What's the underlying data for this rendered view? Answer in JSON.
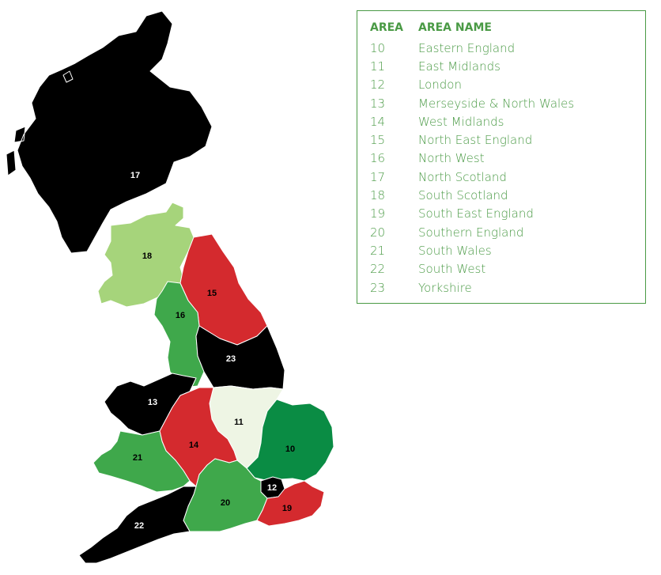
{
  "legend": {
    "header": {
      "area": "AREA",
      "area_name": "AREA NAME"
    },
    "rows": [
      {
        "code": "10",
        "name": "Eastern England"
      },
      {
        "code": "11",
        "name": "East Midlands"
      },
      {
        "code": "12",
        "name": "London"
      },
      {
        "code": "13",
        "name": "Merseyside & North Wales"
      },
      {
        "code": "14",
        "name": "West Midlands"
      },
      {
        "code": "15",
        "name": "North East England"
      },
      {
        "code": "16",
        "name": "North West"
      },
      {
        "code": "17",
        "name": "North Scotland"
      },
      {
        "code": "18",
        "name": "South Scotland"
      },
      {
        "code": "19",
        "name": "South East England"
      },
      {
        "code": "20",
        "name": "Southern England"
      },
      {
        "code": "21",
        "name": "South Wales"
      },
      {
        "code": "22",
        "name": "South West"
      },
      {
        "code": "23",
        "name": "Yorkshire"
      }
    ]
  },
  "map": {
    "regions": [
      {
        "id": "17",
        "label": "17",
        "fill": "#000000",
        "label_color": "#ffffff"
      },
      {
        "id": "18",
        "label": "18",
        "fill": "#a6d47b",
        "label_color": "#000000"
      },
      {
        "id": "15",
        "label": "15",
        "fill": "#d42a2e",
        "label_color": "#000000"
      },
      {
        "id": "16",
        "label": "16",
        "fill": "#3fa84b",
        "label_color": "#000000"
      },
      {
        "id": "23",
        "label": "23",
        "fill": "#000000",
        "label_color": "#ffffff"
      },
      {
        "id": "13",
        "label": "13",
        "fill": "#000000",
        "label_color": "#ffffff"
      },
      {
        "id": "11",
        "label": "11",
        "fill": "#eef5e4",
        "label_color": "#000000"
      },
      {
        "id": "14",
        "label": "14",
        "fill": "#d42a2e",
        "label_color": "#000000"
      },
      {
        "id": "10",
        "label": "10",
        "fill": "#0a8c44",
        "label_color": "#000000"
      },
      {
        "id": "21",
        "label": "21",
        "fill": "#3fa84b",
        "label_color": "#000000"
      },
      {
        "id": "12",
        "label": "12",
        "fill": "#000000",
        "label_color": "#ffffff"
      },
      {
        "id": "20",
        "label": "20",
        "fill": "#3fa84b",
        "label_color": "#000000"
      },
      {
        "id": "19",
        "label": "19",
        "fill": "#d42a2e",
        "label_color": "#000000"
      },
      {
        "id": "22",
        "label": "22",
        "fill": "#000000",
        "label_color": "#ffffff"
      }
    ]
  }
}
